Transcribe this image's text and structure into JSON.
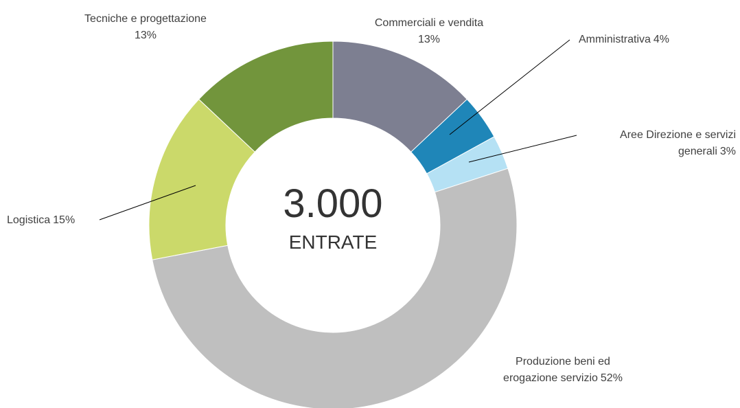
{
  "chart_data": {
    "type": "donut",
    "categories": [
      "Commerciali e vendita",
      "Amministrativa",
      "Aree Direzione e servizi generali",
      "Produzione beni ed erogazione servizio",
      "Logistica",
      "Tecniche e progettazione"
    ],
    "values": [
      13,
      4,
      3,
      52,
      15,
      13
    ],
    "value_labels": [
      "13%",
      "4%",
      "3%",
      "52%",
      "15%",
      "13%"
    ],
    "colors": [
      "#7d7f91",
      "#1f86b8",
      "#b5e1f4",
      "#bfbfbf",
      "#cbd96a",
      "#72953c"
    ],
    "total": {
      "value": 3000,
      "label": "3.000"
    },
    "total_label": "ENTRATE"
  }
}
